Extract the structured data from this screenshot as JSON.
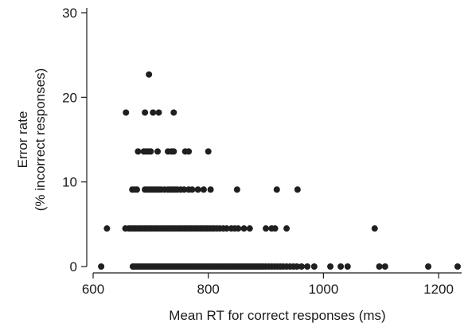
{
  "chart_data": {
    "type": "scatter",
    "title": "",
    "xlabel": "Mean RT for correct responses (ms)",
    "ylabel_lines": [
      "Error rate",
      "(% incorrect responses)"
    ],
    "xlim": [
      600,
      1240
    ],
    "ylim": [
      0,
      30
    ],
    "xticks": [
      600,
      800,
      1000,
      1200
    ],
    "yticks": [
      0,
      10,
      20,
      30
    ],
    "grid": false,
    "legend": "none",
    "point_color": "#1f1f1f",
    "points": [
      [
        614,
        0
      ],
      [
        669,
        0
      ],
      [
        672,
        0
      ],
      [
        676,
        0
      ],
      [
        680,
        0
      ],
      [
        684,
        0
      ],
      [
        688,
        0
      ],
      [
        692,
        0
      ],
      [
        696,
        0
      ],
      [
        700,
        0
      ],
      [
        704,
        0
      ],
      [
        708,
        0
      ],
      [
        712,
        0
      ],
      [
        716,
        0
      ],
      [
        720,
        0
      ],
      [
        724,
        0
      ],
      [
        728,
        0
      ],
      [
        732,
        0
      ],
      [
        736,
        0
      ],
      [
        740,
        0
      ],
      [
        744,
        0
      ],
      [
        748,
        0
      ],
      [
        752,
        0
      ],
      [
        756,
        0
      ],
      [
        760,
        0
      ],
      [
        764,
        0
      ],
      [
        768,
        0
      ],
      [
        772,
        0
      ],
      [
        776,
        0
      ],
      [
        780,
        0
      ],
      [
        784,
        0
      ],
      [
        788,
        0
      ],
      [
        792,
        0
      ],
      [
        796,
        0
      ],
      [
        800,
        0
      ],
      [
        804,
        0
      ],
      [
        808,
        0
      ],
      [
        812,
        0
      ],
      [
        816,
        0
      ],
      [
        820,
        0
      ],
      [
        824,
        0
      ],
      [
        828,
        0
      ],
      [
        832,
        0
      ],
      [
        836,
        0
      ],
      [
        840,
        0
      ],
      [
        844,
        0
      ],
      [
        848,
        0
      ],
      [
        852,
        0
      ],
      [
        856,
        0
      ],
      [
        860,
        0
      ],
      [
        864,
        0
      ],
      [
        868,
        0
      ],
      [
        872,
        0
      ],
      [
        876,
        0
      ],
      [
        880,
        0
      ],
      [
        884,
        0
      ],
      [
        888,
        0
      ],
      [
        892,
        0
      ],
      [
        896,
        0
      ],
      [
        900,
        0
      ],
      [
        905,
        0
      ],
      [
        910,
        0
      ],
      [
        915,
        0
      ],
      [
        920,
        0
      ],
      [
        925,
        0
      ],
      [
        930,
        0
      ],
      [
        936,
        0
      ],
      [
        942,
        0
      ],
      [
        948,
        0
      ],
      [
        954,
        0
      ],
      [
        962,
        0
      ],
      [
        972,
        0
      ],
      [
        984,
        0
      ],
      [
        1012,
        0
      ],
      [
        1030,
        0
      ],
      [
        1042,
        0
      ],
      [
        1097,
        0
      ],
      [
        1107,
        0
      ],
      [
        1182,
        0
      ],
      [
        1233,
        0
      ],
      [
        624,
        4.5
      ],
      [
        656,
        4.5
      ],
      [
        662,
        4.5
      ],
      [
        666,
        4.5
      ],
      [
        670,
        4.5
      ],
      [
        674,
        4.5
      ],
      [
        678,
        4.5
      ],
      [
        682,
        4.5
      ],
      [
        686,
        4.5
      ],
      [
        690,
        4.5
      ],
      [
        694,
        4.5
      ],
      [
        698,
        4.5
      ],
      [
        702,
        4.5
      ],
      [
        706,
        4.5
      ],
      [
        710,
        4.5
      ],
      [
        714,
        4.5
      ],
      [
        718,
        4.5
      ],
      [
        722,
        4.5
      ],
      [
        726,
        4.5
      ],
      [
        730,
        4.5
      ],
      [
        734,
        4.5
      ],
      [
        738,
        4.5
      ],
      [
        742,
        4.5
      ],
      [
        746,
        4.5
      ],
      [
        750,
        4.5
      ],
      [
        754,
        4.5
      ],
      [
        758,
        4.5
      ],
      [
        762,
        4.5
      ],
      [
        766,
        4.5
      ],
      [
        770,
        4.5
      ],
      [
        774,
        4.5
      ],
      [
        778,
        4.5
      ],
      [
        782,
        4.5
      ],
      [
        786,
        4.5
      ],
      [
        790,
        4.5
      ],
      [
        794,
        4.5
      ],
      [
        798,
        4.5
      ],
      [
        802,
        4.5
      ],
      [
        806,
        4.5
      ],
      [
        810,
        4.5
      ],
      [
        815,
        4.5
      ],
      [
        820,
        4.5
      ],
      [
        826,
        4.5
      ],
      [
        832,
        4.5
      ],
      [
        840,
        4.5
      ],
      [
        846,
        4.5
      ],
      [
        852,
        4.5
      ],
      [
        862,
        4.5
      ],
      [
        872,
        4.5
      ],
      [
        900,
        4.5
      ],
      [
        910,
        4.5
      ],
      [
        916,
        4.5
      ],
      [
        936,
        4.5
      ],
      [
        1089,
        4.5
      ],
      [
        668,
        9.1
      ],
      [
        672,
        9.1
      ],
      [
        676,
        9.1
      ],
      [
        690,
        9.1
      ],
      [
        694,
        9.1
      ],
      [
        698,
        9.1
      ],
      [
        702,
        9.1
      ],
      [
        706,
        9.1
      ],
      [
        710,
        9.1
      ],
      [
        714,
        9.1
      ],
      [
        718,
        9.1
      ],
      [
        724,
        9.1
      ],
      [
        730,
        9.1
      ],
      [
        734,
        9.1
      ],
      [
        738,
        9.1
      ],
      [
        742,
        9.1
      ],
      [
        746,
        9.1
      ],
      [
        752,
        9.1
      ],
      [
        758,
        9.1
      ],
      [
        766,
        9.1
      ],
      [
        772,
        9.1
      ],
      [
        782,
        9.1
      ],
      [
        792,
        9.1
      ],
      [
        804,
        9.1
      ],
      [
        850,
        9.1
      ],
      [
        919,
        9.1
      ],
      [
        955,
        9.1
      ],
      [
        678,
        13.6
      ],
      [
        688,
        13.6
      ],
      [
        692,
        13.6
      ],
      [
        696,
        13.6
      ],
      [
        700,
        13.6
      ],
      [
        712,
        13.6
      ],
      [
        730,
        13.6
      ],
      [
        736,
        13.6
      ],
      [
        740,
        13.6
      ],
      [
        760,
        13.6
      ],
      [
        766,
        13.6
      ],
      [
        800,
        13.6
      ],
      [
        657,
        18.2
      ],
      [
        690,
        18.2
      ],
      [
        704,
        18.2
      ],
      [
        714,
        18.2
      ],
      [
        740,
        18.2
      ],
      [
        697,
        22.7
      ]
    ]
  }
}
